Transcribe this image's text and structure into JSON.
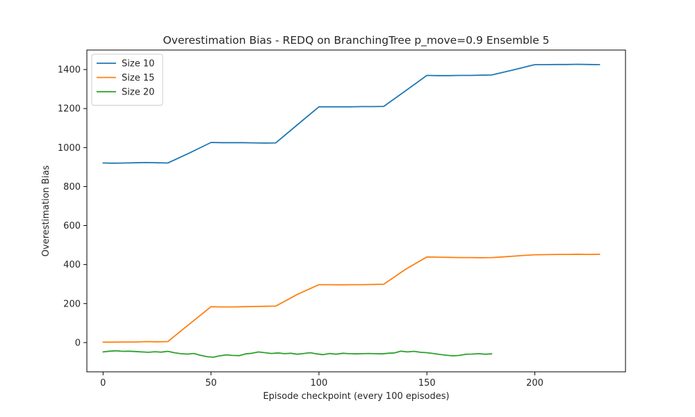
{
  "chart_data": {
    "type": "line",
    "title": "Overestimation Bias - REDQ on BranchingTree p_move=0.9 Ensemble 5",
    "xlabel": "Episode checkpoint (every 100 episodes)",
    "ylabel": "Overestimation Bias",
    "xlim": [
      -7.5,
      242
    ],
    "ylim": [
      -150,
      1500
    ],
    "xticks": [
      0,
      50,
      100,
      150,
      200
    ],
    "yticks": [
      0,
      200,
      400,
      600,
      800,
      1000,
      1200,
      1400
    ],
    "grid": false,
    "legend": {
      "position": "upper-left"
    },
    "series": [
      {
        "name": "Size 10",
        "color": "#1f77b4",
        "x": [
          0,
          5,
          10,
          15,
          20,
          25,
          30,
          40,
          50,
          55,
          60,
          65,
          70,
          75,
          80,
          90,
          100,
          105,
          110,
          115,
          120,
          125,
          130,
          140,
          150,
          155,
          160,
          165,
          170,
          175,
          180,
          190,
          200,
          205,
          210,
          215,
          220,
          225,
          230
        ],
        "y": [
          921,
          920,
          921,
          922,
          923,
          922,
          921,
          972,
          1026,
          1025,
          1025,
          1025,
          1024,
          1023,
          1024,
          1117,
          1209,
          1209,
          1209,
          1209,
          1210,
          1210,
          1211,
          1290,
          1370,
          1369,
          1369,
          1370,
          1370,
          1371,
          1372,
          1398,
          1425,
          1425,
          1426,
          1426,
          1427,
          1426,
          1425
        ]
      },
      {
        "name": "Size 15",
        "color": "#ff7f0e",
        "x": [
          0,
          5,
          10,
          15,
          20,
          25,
          30,
          40,
          50,
          55,
          60,
          65,
          70,
          75,
          80,
          90,
          100,
          105,
          110,
          115,
          120,
          125,
          130,
          140,
          150,
          155,
          160,
          165,
          170,
          175,
          180,
          185,
          190,
          195,
          200,
          205,
          210,
          215,
          220,
          225,
          230
        ],
        "y": [
          2,
          2,
          3,
          3,
          5,
          4,
          5,
          95,
          184,
          183,
          183,
          184,
          185,
          186,
          187,
          247,
          297,
          297,
          296,
          297,
          297,
          298,
          299,
          375,
          439,
          438,
          437,
          436,
          436,
          435,
          436,
          439,
          443,
          447,
          450,
          451,
          452,
          452,
          453,
          452,
          453
        ]
      },
      {
        "name": "Size 20",
        "color": "#2ca02c",
        "x": [
          0,
          3,
          6,
          9,
          12,
          15,
          18,
          21,
          24,
          27,
          30,
          33,
          36,
          39,
          42,
          45,
          48,
          51,
          54,
          57,
          60,
          63,
          66,
          69,
          72,
          75,
          78,
          81,
          84,
          87,
          90,
          93,
          96,
          99,
          102,
          105,
          108,
          111,
          114,
          117,
          120,
          123,
          126,
          129,
          132,
          135,
          138,
          141,
          144,
          147,
          150,
          153,
          156,
          159,
          162,
          165,
          168,
          171,
          174,
          177,
          180
        ],
        "y": [
          -48,
          -44,
          -42,
          -45,
          -44,
          -46,
          -48,
          -50,
          -47,
          -49,
          -45,
          -52,
          -57,
          -59,
          -56,
          -65,
          -72,
          -75,
          -68,
          -63,
          -66,
          -67,
          -58,
          -55,
          -48,
          -52,
          -56,
          -53,
          -57,
          -55,
          -60,
          -56,
          -52,
          -58,
          -62,
          -56,
          -60,
          -55,
          -57,
          -58,
          -57,
          -56,
          -57,
          -58,
          -55,
          -53,
          -44,
          -48,
          -45,
          -50,
          -52,
          -56,
          -61,
          -65,
          -68,
          -66,
          -60,
          -59,
          -57,
          -60,
          -58
        ]
      }
    ]
  }
}
